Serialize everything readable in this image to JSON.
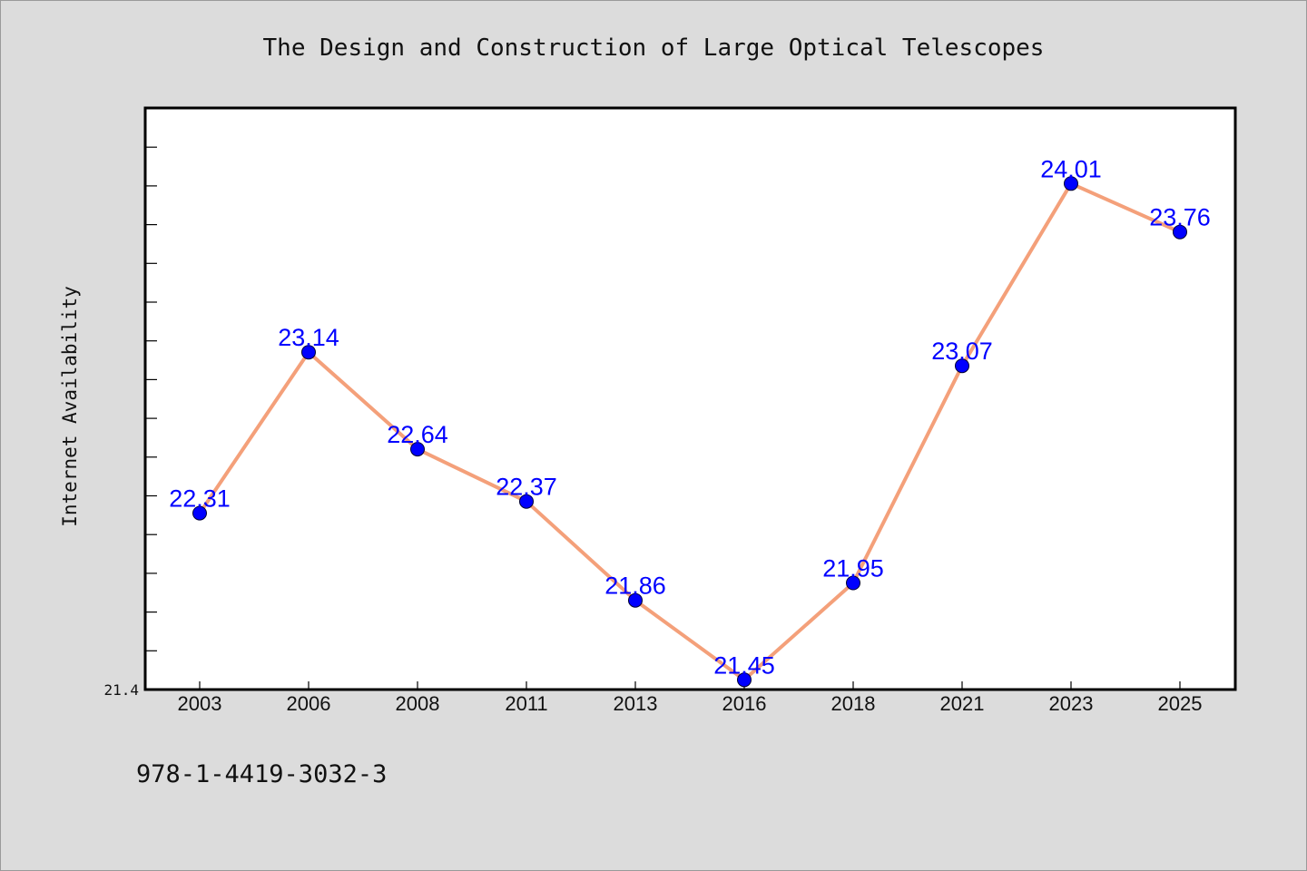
{
  "chart_data": {
    "type": "line",
    "title": "The Design and Construction of Large Optical Telescopes",
    "ylabel": "Internet Availability",
    "xlabel": "",
    "categories": [
      "2003",
      "2006",
      "2008",
      "2011",
      "2013",
      "2016",
      "2018",
      "2021",
      "2023",
      "2025"
    ],
    "series": [
      {
        "values": [
          22.31,
          23.14,
          22.64,
          22.37,
          21.86,
          21.45,
          21.95,
          23.07,
          24.01,
          23.76
        ],
        "labels": [
          "22.31",
          "23.14",
          "22.64",
          "22.37",
          "21.86",
          "21.45",
          "21.95",
          "23.07",
          "24.01",
          "23.76"
        ]
      }
    ],
    "ylim": [
      21.4,
      24.4
    ],
    "ytick_label": "21.4",
    "grid": false,
    "line_color": "#f4a07a",
    "marker_color": "#0000ff",
    "label_color": "#0000ff"
  },
  "footer": {
    "isbn": "978-1-4419-3032-3"
  }
}
